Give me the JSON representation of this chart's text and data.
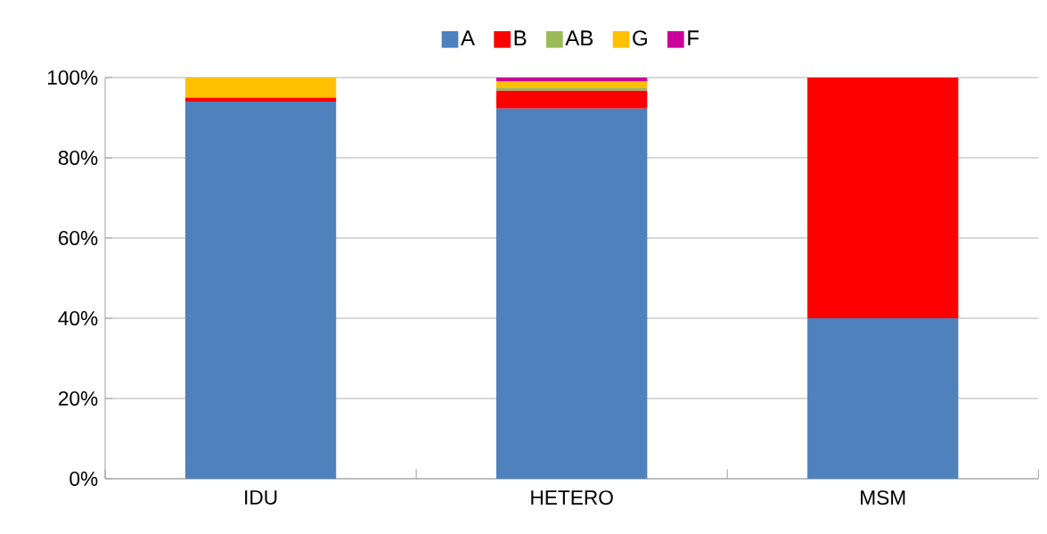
{
  "chart_data": {
    "type": "bar",
    "stacked": true,
    "categories": [
      "IDU",
      "HETERO",
      "MSM"
    ],
    "series": [
      {
        "name": "A",
        "color": "#4f81bd",
        "values": [
          94,
          92.3,
          40
        ]
      },
      {
        "name": "B",
        "color": "#ff0000",
        "values": [
          1,
          4.4,
          60
        ]
      },
      {
        "name": "AB",
        "color": "#9bbb59",
        "values": [
          0,
          0.8,
          0
        ]
      },
      {
        "name": "G",
        "color": "#ffc000",
        "values": [
          5,
          1.5,
          0
        ]
      },
      {
        "name": "F",
        "color": "#cc0099",
        "values": [
          0,
          1,
          0
        ]
      }
    ],
    "ylim": [
      0,
      100
    ],
    "yticks": [
      {
        "value": 0,
        "label": "0%"
      },
      {
        "value": 20,
        "label": "20%"
      },
      {
        "value": 40,
        "label": "40%"
      },
      {
        "value": 60,
        "label": "60%"
      },
      {
        "value": 80,
        "label": "80%"
      },
      {
        "value": 100,
        "label": "100%"
      }
    ],
    "grid": "y",
    "legend": "top"
  }
}
